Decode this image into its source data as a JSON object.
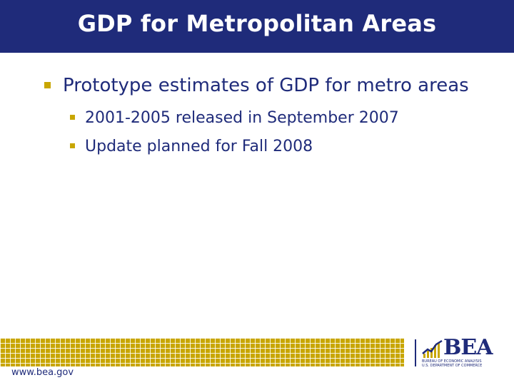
{
  "slide": {
    "title": "GDP for Metropolitan Areas",
    "bullets": [
      {
        "text": "Prototype estimates of GDP for metro areas",
        "sub": [
          "2001-2005 released in September 2007",
          "Update planned for Fall 2008"
        ]
      }
    ]
  },
  "footer": {
    "url": "www.bea.gov",
    "logo": {
      "name": "BEA",
      "line1": "BUREAU OF ECONOMIC ANALYSIS",
      "line2": "U.S. DEPARTMENT OF COMMERCE"
    }
  },
  "colors": {
    "title_bar": "#1f2b7a",
    "text": "#1f2b7a",
    "accent_gold": "#c8a600"
  }
}
